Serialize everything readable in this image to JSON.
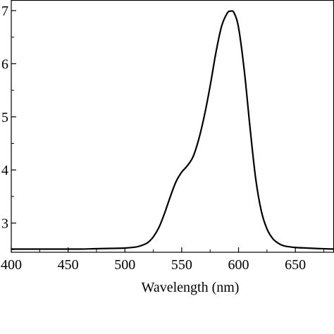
{
  "chart_data": {
    "type": "line",
    "title": "",
    "xlabel": "Wavelength (nm)",
    "ylabel": "",
    "xlim": [
      400,
      684
    ],
    "ylim": [
      2.45,
      7.2
    ],
    "x_ticks": [
      400,
      450,
      500,
      550,
      600,
      650
    ],
    "x_tick_labels": [
      "400",
      "450",
      "500",
      "550",
      "600",
      "650"
    ],
    "y_ticks": [
      3,
      4,
      5,
      6,
      7
    ],
    "y_tick_labels": [
      "3",
      "4",
      "5",
      "6",
      "7"
    ],
    "grid": false,
    "legend": "none",
    "series": [
      {
        "color": "#000000",
        "x": [
          400,
          420,
          440,
          460,
          480,
          500,
          510,
          515,
          520,
          525,
          530,
          535,
          540,
          545,
          550,
          555,
          560,
          565,
          570,
          575,
          580,
          585,
          590,
          593,
          596,
          600,
          605,
          610,
          615,
          620,
          625,
          630,
          635,
          640,
          650,
          660,
          670,
          684
        ],
        "y": [
          2.51,
          2.51,
          2.51,
          2.51,
          2.52,
          2.53,
          2.55,
          2.58,
          2.63,
          2.74,
          2.92,
          3.19,
          3.5,
          3.78,
          3.96,
          4.08,
          4.25,
          4.58,
          5.03,
          5.58,
          6.2,
          6.7,
          6.95,
          6.99,
          6.96,
          6.68,
          5.88,
          4.82,
          3.85,
          3.23,
          2.89,
          2.71,
          2.62,
          2.57,
          2.54,
          2.53,
          2.52,
          2.51
        ]
      }
    ]
  }
}
